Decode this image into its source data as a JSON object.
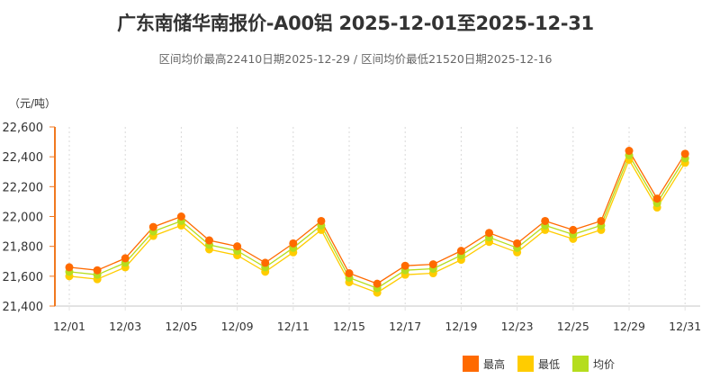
{
  "header": {
    "title": "广东南储华南报价-A00铝 2025-12-01至2025-12-31",
    "subtitle": "区间均价最高22410日期2025-12-29 / 区间均价最低21520日期2025-12-16"
  },
  "axis": {
    "unit_label": "（元/吨）",
    "y_ticks": [
      "22,600",
      "22,400",
      "22,200",
      "22,000",
      "21,800",
      "21,600",
      "21,400"
    ],
    "x_labels": [
      "12/01",
      "12/03",
      "12/05",
      "12/09",
      "12/11",
      "12/15",
      "12/17",
      "12/19",
      "12/23",
      "12/25",
      "12/29",
      "12/31"
    ]
  },
  "legend": [
    {
      "label": "最高",
      "color": "#ff6a00"
    },
    {
      "label": "最低",
      "color": "#ffcc00"
    },
    {
      "label": "均价",
      "color": "#b5dd1e"
    }
  ],
  "colors": {
    "high": "#ff6a00",
    "low": "#ffcc00",
    "avg": "#b5dd1e",
    "axis": "#f07820",
    "grid": "#d8d8d8"
  },
  "chart_data": {
    "type": "line",
    "title": "广东南储华南报价-A00铝 2025-12-01至2025-12-31",
    "subtitle": "区间均价最高22410日期2025-12-29 / 区间均价最低21520日期2025-12-16",
    "xlabel": "",
    "ylabel": "（元/吨）",
    "ylim": [
      21400,
      22600
    ],
    "grid": "vertical dotted",
    "legend_position": "bottom-right",
    "x": [
      "12/01",
      "12/02",
      "12/03",
      "12/04",
      "12/05",
      "12/08",
      "12/09",
      "12/10",
      "12/11",
      "12/12",
      "12/15",
      "12/16",
      "12/17",
      "12/18",
      "12/19",
      "12/22",
      "12/23",
      "12/24",
      "12/25",
      "12/26",
      "12/29",
      "12/30",
      "12/31"
    ],
    "series": [
      {
        "name": "最高",
        "values": [
          21660,
          21640,
          21720,
          21930,
          22000,
          21840,
          21800,
          21690,
          21820,
          21970,
          21620,
          21550,
          21670,
          21680,
          21770,
          21890,
          21820,
          21970,
          21910,
          21970,
          22440,
          22120,
          22420
        ]
      },
      {
        "name": "最低",
        "values": [
          21600,
          21580,
          21660,
          21870,
          21940,
          21780,
          21740,
          21630,
          21760,
          21910,
          21560,
          21490,
          21610,
          21620,
          21710,
          21830,
          21760,
          21910,
          21850,
          21910,
          22380,
          22060,
          22360
        ]
      },
      {
        "name": "均价",
        "values": [
          21630,
          21610,
          21690,
          21900,
          21970,
          21810,
          21770,
          21660,
          21790,
          21940,
          21590,
          21520,
          21640,
          21650,
          21740,
          21860,
          21790,
          21940,
          21880,
          21940,
          22410,
          22090,
          22390
        ]
      }
    ]
  }
}
